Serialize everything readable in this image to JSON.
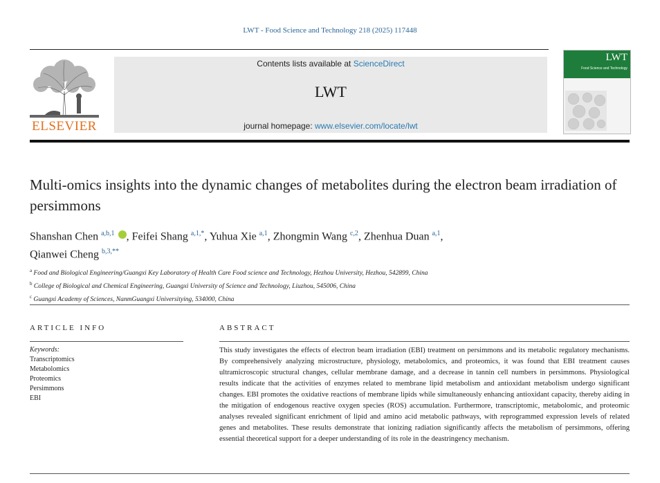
{
  "header": {
    "journal_ref": "LWT - Food Science and Technology 218 (2025) 117448",
    "contents_prefix": "Contents lists available at ",
    "contents_link": "ScienceDirect",
    "journal_name": "LWT",
    "homepage_prefix": "journal homepage: ",
    "homepage_link": "www.elsevier.com/locate/lwt",
    "publisher": "ELSEVIER",
    "cover_title": "LWT",
    "cover_subtitle": "Food Science and Technology"
  },
  "article": {
    "title": "Multi-omics insights into the dynamic changes of metabolites during the electron beam irradiation of persimmons",
    "authors": [
      {
        "name": "Shanshan Chen",
        "sup": "a,b,1",
        "orcid": true
      },
      {
        "name": "Feifei Shang",
        "sup": "a,1,*"
      },
      {
        "name": "Yuhua Xie",
        "sup": "a,1"
      },
      {
        "name": "Zhongmin Wang",
        "sup": "c,2"
      },
      {
        "name": "Zhenhua Duan",
        "sup": "a,1"
      },
      {
        "name": "Qianwei Cheng",
        "sup": "b,3,**"
      }
    ],
    "affiliations": [
      {
        "mark": "a",
        "text": "Food and Biological Engineering/Guangxi Key Laboratory of Health Care Food science and Technology, Hezhou University, Hezhou, 542899, China"
      },
      {
        "mark": "b",
        "text": "College of Biological and Chemical Engineering, Guangxi University of Science and Technology, Liuzhou, 545006, China"
      },
      {
        "mark": "c",
        "text": "Guangxi Academy of Sciences, NanmGuangxi Universitying, 534000, China"
      }
    ]
  },
  "article_info": {
    "heading": "ARTICLE INFO",
    "keywords_label": "Keywords:",
    "keywords": [
      "Transcriptomics",
      "Metabolomics",
      "Proteomics",
      "Persimmons",
      "EBI"
    ]
  },
  "abstract": {
    "heading": "ABSTRACT",
    "text": "This study investigates the effects of electron beam irradiation (EBI) treatment on persimmons and its metabolic regulatory mechanisms. By comprehensively analyzing microstructure, physiology, metabolomics, and proteomics, it was found that EBI treatment causes ultramicroscopic structural changes, cellular membrane damage, and a decrease in tannin cell numbers in persimmons. Physiological results indicate that the activities of enzymes related to membrane lipid metabolism and antioxidant metabolism undergo significant changes. EBI promotes the oxidative reactions of membrane lipids while simultaneously enhancing antioxidant capacity, thereby aiding in the mitigation of endogenous reactive oxygen species (ROS) accumulation. Furthermore, transcriptomic, metabolomic, and proteomic analyses revealed significant enrichment of lipid and amino acid metabolic pathways, with reprogrammed expression levels of related genes and metabolites. These results demonstrate that ionizing radiation significantly affects the metabolism of persimmons, offering essential theoretical support for a deeper understanding of its role in the deastringency mechanism."
  },
  "colors": {
    "link": "#2a7ab0",
    "elsevier_orange": "#e0711f",
    "cover_green": "#1e7d3b",
    "orcid_green": "#a6ce39"
  }
}
